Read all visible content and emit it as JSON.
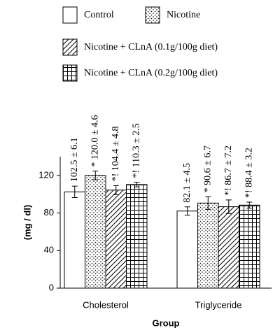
{
  "chart_data": {
    "type": "bar",
    "categories": [
      "Cholesterol",
      "Triglyceride"
    ],
    "series": [
      {
        "name": "Control",
        "pattern": "none",
        "color": "#000000",
        "values": [
          102.5,
          82.1
        ],
        "errors": [
          6.1,
          4.5
        ],
        "value_labels": [
          "102.5 ± 6.1",
          "82.1 ± 4.5"
        ]
      },
      {
        "name": "Nicotine",
        "pattern": "dots",
        "color": "#000000",
        "values": [
          120.0,
          90.6
        ],
        "errors": [
          4.6,
          6.7
        ],
        "value_labels": [
          "* 120.0 ± 4.6",
          "* 90.6 ± 6.7"
        ]
      },
      {
        "name": "Nicotine + CLnA (0.1g/100g diet)",
        "pattern": "diagonal",
        "color": "#000000",
        "values": [
          104.4,
          86.7
        ],
        "errors": [
          4.8,
          7.2
        ],
        "value_labels": [
          "*! 104.4 ± 4.8",
          "*! 86.7 ± 7.2"
        ]
      },
      {
        "name": "Nicotine + CLnA (0.2g/100g diet)",
        "pattern": "grid",
        "color": "#000000",
        "values": [
          110.3,
          88.4
        ],
        "errors": [
          2.5,
          3.2
        ],
        "value_labels": [
          "*! 110.3 ± 2.5",
          "*! 88.4 ± 3.2"
        ]
      }
    ],
    "ylim": [
      0,
      140
    ],
    "yticks": [
      0,
      40,
      80,
      120
    ],
    "xlabel": "Group",
    "ylabel": "(mg / dl)"
  }
}
